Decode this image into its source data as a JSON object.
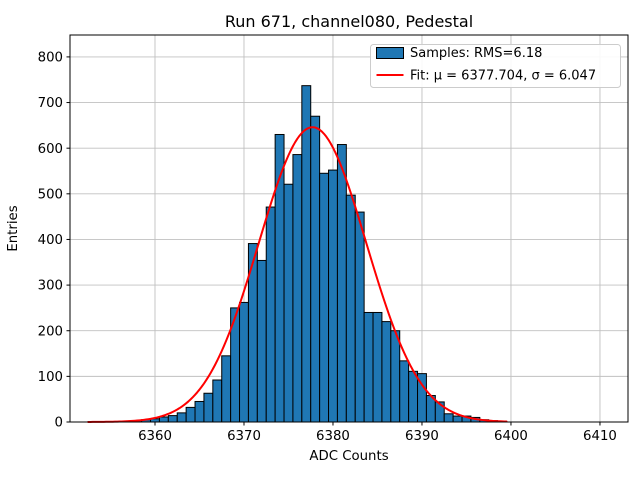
{
  "figure": {
    "title": "Run 671, channel080, Pedestal",
    "xlabel": "ADC Counts",
    "ylabel": "Entries"
  },
  "legend": {
    "samples_label": "Samples: RMS=6.18",
    "fit_label": "Fit: μ = 6377.704, σ = 6.047"
  },
  "colors": {
    "bar_fill": "#1f77b4",
    "bar_edge": "#000000",
    "fit_line": "#ff0000",
    "grid": "#c0c0c0",
    "spine": "#000000",
    "legend_border": "#cccccc",
    "background": "#ffffff"
  },
  "chart_data": {
    "type": "bar",
    "subtype": "histogram",
    "title": "Run 671, channel080, Pedestal",
    "xlabel": "ADC Counts",
    "ylabel": "Entries",
    "bin_width": 1,
    "bin_centers": [
      6353,
      6354,
      6355,
      6356,
      6357,
      6358,
      6359,
      6360,
      6361,
      6362,
      6363,
      6364,
      6365,
      6366,
      6367,
      6368,
      6369,
      6370,
      6371,
      6372,
      6373,
      6374,
      6375,
      6376,
      6377,
      6378,
      6379,
      6380,
      6381,
      6382,
      6383,
      6384,
      6385,
      6386,
      6387,
      6388,
      6389,
      6390,
      6391,
      6392,
      6393,
      6394,
      6395,
      6396,
      6397,
      6398
    ],
    "values": [
      1,
      1,
      1,
      1,
      2,
      3,
      5,
      7,
      11,
      14,
      20,
      32,
      45,
      63,
      92,
      145,
      250,
      262,
      391,
      354,
      471,
      630,
      521,
      586,
      737,
      670,
      545,
      552,
      608,
      497,
      460,
      240,
      240,
      220,
      200,
      134,
      111,
      106,
      58,
      44,
      18,
      13,
      13,
      10,
      5,
      3
    ],
    "rms": 6.18,
    "fit": {
      "type": "gaussian",
      "mu": 6377.704,
      "sigma": 6.047,
      "amplitude": 646,
      "x_range": [
        6352.5,
        6399.5
      ]
    },
    "xlim": [
      6350.45,
      6413.15
    ],
    "ylim": [
      0,
      848
    ],
    "xticks": [
      6360,
      6370,
      6380,
      6390,
      6400,
      6410
    ],
    "yticks": [
      0,
      100,
      200,
      300,
      400,
      500,
      600,
      700,
      800
    ],
    "grid": true,
    "legend_position": "upper right"
  }
}
